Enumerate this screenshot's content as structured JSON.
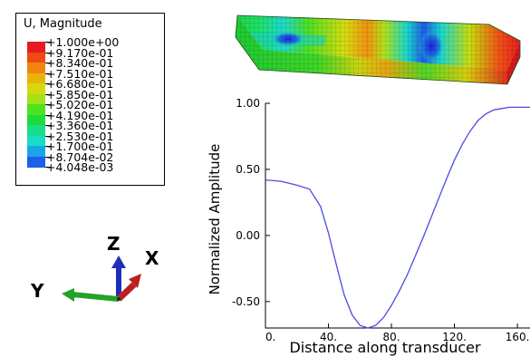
{
  "legend": {
    "title": "U, Magnitude",
    "entries": [
      {
        "label": "+1.000e+00",
        "color": "#e8191f"
      },
      {
        "label": "+9.170e-01",
        "color": "#ef4a16"
      },
      {
        "label": "+8.340e-01",
        "color": "#f2850f"
      },
      {
        "label": "+7.510e-01",
        "color": "#e9b40a"
      },
      {
        "label": "+6.680e-01",
        "color": "#d6d80c"
      },
      {
        "label": "+5.850e-01",
        "color": "#a4e21a"
      },
      {
        "label": "+5.020e-01",
        "color": "#4ee21e"
      },
      {
        "label": "+4.190e-01",
        "color": "#1cdc3a"
      },
      {
        "label": "+3.360e-01",
        "color": "#1bdc8a"
      },
      {
        "label": "+2.530e-01",
        "color": "#17dcc6"
      },
      {
        "label": "+1.700e-01",
        "color": "#1aa6e6"
      },
      {
        "label": "+8.704e-02",
        "color": "#1d5fe6"
      },
      {
        "label": "+4.048e-03",
        "color": "#1a1de4"
      }
    ]
  },
  "triad": {
    "z_label": "Z",
    "x_label": "X",
    "y_label": "Y",
    "z_color": "#1d2fb8",
    "x_color": "#b82020",
    "y_color": "#23a326"
  },
  "chart_data": {
    "type": "line",
    "xlabel": "Distance along transducer",
    "ylabel": "Normalized Amplitude",
    "xlim": [
      0,
      168
    ],
    "ylim": [
      -0.7,
      1.0
    ],
    "x_ticks": [
      0,
      40,
      80,
      120,
      160
    ],
    "x_tick_labels": [
      "0.",
      "40.",
      "80.",
      "120.",
      "160."
    ],
    "y_ticks": [
      1.0,
      0.5,
      0.0,
      -0.5
    ],
    "y_tick_labels": [
      "1.00",
      "0.50",
      "0.00",
      "-0.50"
    ],
    "line_color": "#4b4be6",
    "series": [
      {
        "x": [
          0,
          10,
          20,
          28,
          35,
          40,
          45,
          50,
          55,
          60,
          65,
          70,
          75,
          80,
          85,
          90,
          95,
          100,
          105,
          110,
          115,
          120,
          125,
          130,
          135,
          140,
          145,
          150,
          155,
          160,
          165,
          168
        ],
        "y": [
          0.42,
          0.41,
          0.38,
          0.35,
          0.22,
          0.02,
          -0.22,
          -0.45,
          -0.6,
          -0.68,
          -0.7,
          -0.68,
          -0.62,
          -0.53,
          -0.42,
          -0.3,
          -0.16,
          -0.02,
          0.13,
          0.28,
          0.43,
          0.57,
          0.69,
          0.79,
          0.87,
          0.92,
          0.95,
          0.96,
          0.97,
          0.97,
          0.97,
          0.97
        ]
      }
    ]
  }
}
